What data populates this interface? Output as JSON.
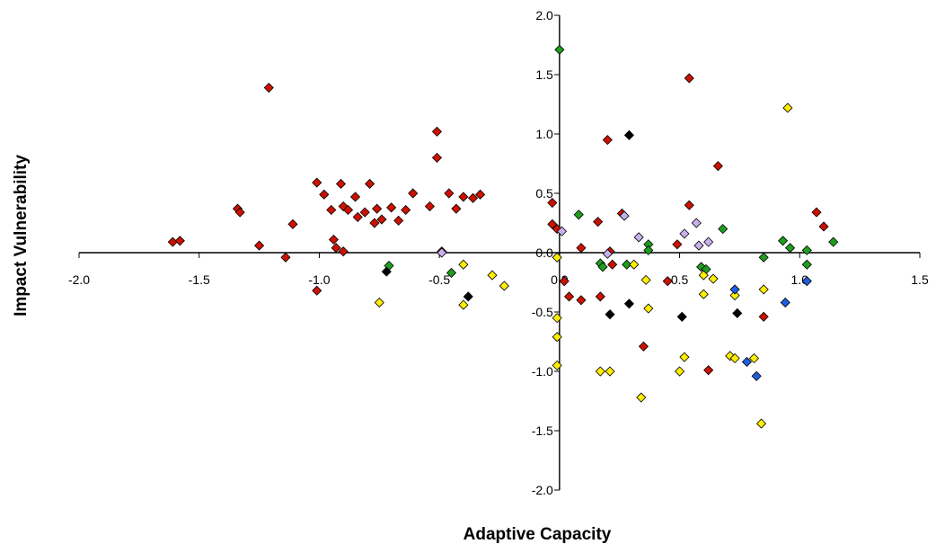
{
  "chart_data": {
    "type": "scatter",
    "title": "",
    "xlabel": "Adaptive Capacity",
    "ylabel": "Impact Vulnerability",
    "xlim": [
      -2.0,
      1.5
    ],
    "ylim": [
      -2.0,
      2.0
    ],
    "x_ticks": [
      "-2.0",
      "-1.5",
      "-1.0",
      "-0.5",
      "0.0",
      "0.5",
      "1.0",
      "1.5"
    ],
    "y_ticks": [
      "2.0",
      "1.5",
      "1.0",
      "0.5",
      "0.0",
      "-0.5",
      "-1.0",
      "-1.5",
      "-2.0"
    ],
    "grid": false,
    "legend": "none",
    "colors": {
      "red": "#cc1100",
      "green": "#1e9e1e",
      "yellow": "#ffee00",
      "black": "#000000",
      "blue": "#1f5fe0",
      "lavender": "#c8b0ee"
    },
    "series": [
      {
        "color": "red",
        "points": [
          [
            -1.61,
            0.09
          ],
          [
            -1.58,
            0.1
          ],
          [
            -1.34,
            0.37
          ],
          [
            -1.33,
            0.34
          ],
          [
            -1.25,
            0.06
          ],
          [
            -1.21,
            1.39
          ],
          [
            -1.14,
            -0.04
          ],
          [
            -1.11,
            0.24
          ],
          [
            -1.01,
            0.59
          ],
          [
            -1.01,
            -0.32
          ],
          [
            -0.98,
            0.49
          ],
          [
            -0.95,
            0.36
          ],
          [
            -0.94,
            0.11
          ],
          [
            -0.93,
            0.04
          ],
          [
            -0.91,
            0.58
          ],
          [
            -0.9,
            0.39
          ],
          [
            -0.9,
            0.01
          ],
          [
            -0.88,
            0.36
          ],
          [
            -0.85,
            0.47
          ],
          [
            -0.84,
            0.3
          ],
          [
            -0.81,
            0.34
          ],
          [
            -0.79,
            0.58
          ],
          [
            -0.77,
            0.25
          ],
          [
            -0.76,
            0.37
          ],
          [
            -0.74,
            0.28
          ],
          [
            -0.7,
            0.38
          ],
          [
            -0.67,
            0.27
          ],
          [
            -0.64,
            0.36
          ],
          [
            -0.61,
            0.5
          ],
          [
            -0.54,
            0.39
          ],
          [
            -0.51,
            1.02
          ],
          [
            -0.51,
            0.8
          ],
          [
            -0.49,
            0.01
          ],
          [
            -0.46,
            0.5
          ],
          [
            -0.43,
            0.37
          ],
          [
            -0.4,
            0.47
          ],
          [
            -0.36,
            0.46
          ],
          [
            -0.33,
            0.49
          ],
          [
            -0.03,
            0.42
          ],
          [
            -0.03,
            0.24
          ],
          [
            -0.01,
            0.2
          ],
          [
            0.02,
            -0.24
          ],
          [
            0.04,
            -0.37
          ],
          [
            0.09,
            -0.4
          ],
          [
            0.09,
            0.04
          ],
          [
            0.16,
            0.26
          ],
          [
            0.17,
            -0.37
          ],
          [
            0.2,
            0.95
          ],
          [
            0.21,
            0.01
          ],
          [
            0.22,
            -0.1
          ],
          [
            0.26,
            0.33
          ],
          [
            0.35,
            -0.79
          ],
          [
            0.45,
            -0.24
          ],
          [
            0.49,
            0.07
          ],
          [
            0.54,
            1.47
          ],
          [
            0.54,
            0.4
          ],
          [
            0.62,
            -0.99
          ],
          [
            0.66,
            0.73
          ],
          [
            0.85,
            -0.54
          ],
          [
            1.07,
            0.34
          ],
          [
            1.1,
            0.22
          ]
        ]
      },
      {
        "color": "green",
        "points": [
          [
            -0.71,
            -0.11
          ],
          [
            -0.45,
            -0.17
          ],
          [
            0.0,
            1.71
          ],
          [
            0.08,
            0.32
          ],
          [
            0.17,
            -0.09
          ],
          [
            0.18,
            -0.12
          ],
          [
            0.28,
            -0.1
          ],
          [
            0.37,
            0.07
          ],
          [
            0.37,
            0.02
          ],
          [
            0.59,
            -0.12
          ],
          [
            0.61,
            -0.14
          ],
          [
            0.68,
            0.2
          ],
          [
            0.85,
            -0.04
          ],
          [
            0.93,
            0.1
          ],
          [
            0.96,
            0.04
          ],
          [
            1.03,
            0.02
          ],
          [
            1.03,
            -0.1
          ],
          [
            1.14,
            0.09
          ]
        ]
      },
      {
        "color": "yellow",
        "points": [
          [
            -0.75,
            -0.42
          ],
          [
            -0.4,
            -0.1
          ],
          [
            -0.4,
            -0.44
          ],
          [
            -0.28,
            -0.19
          ],
          [
            -0.23,
            -0.28
          ],
          [
            -0.01,
            -0.71
          ],
          [
            -0.01,
            -0.95
          ],
          [
            -0.01,
            -0.55
          ],
          [
            -0.01,
            -0.04
          ],
          [
            0.17,
            -1.0
          ],
          [
            0.21,
            -1.0
          ],
          [
            0.31,
            -0.1
          ],
          [
            0.34,
            -1.22
          ],
          [
            0.36,
            -0.23
          ],
          [
            0.37,
            -0.47
          ],
          [
            0.5,
            -1.0
          ],
          [
            0.52,
            -0.88
          ],
          [
            0.6,
            -0.35
          ],
          [
            0.6,
            -0.19
          ],
          [
            0.64,
            -0.22
          ],
          [
            0.71,
            -0.87
          ],
          [
            0.73,
            -0.89
          ],
          [
            0.73,
            -0.36
          ],
          [
            0.81,
            -0.89
          ],
          [
            0.84,
            -1.44
          ],
          [
            0.85,
            -0.31
          ],
          [
            0.95,
            1.22
          ]
        ]
      },
      {
        "color": "black",
        "points": [
          [
            -0.72,
            -0.16
          ],
          [
            -0.38,
            -0.37
          ],
          [
            0.29,
            0.99
          ],
          [
            0.29,
            -0.43
          ],
          [
            0.21,
            -0.52
          ],
          [
            0.51,
            -0.54
          ],
          [
            0.74,
            -0.51
          ]
        ]
      },
      {
        "color": "blue",
        "points": [
          [
            0.73,
            -0.31
          ],
          [
            0.78,
            -0.92
          ],
          [
            0.82,
            -1.04
          ],
          [
            0.94,
            -0.42
          ],
          [
            1.03,
            -0.24
          ]
        ]
      },
      {
        "color": "lavender",
        "points": [
          [
            -0.49,
            0.0
          ],
          [
            0.01,
            0.18
          ],
          [
            0.27,
            0.31
          ],
          [
            0.33,
            0.13
          ],
          [
            0.52,
            0.16
          ],
          [
            0.57,
            0.25
          ],
          [
            0.58,
            0.06
          ],
          [
            0.62,
            0.09
          ],
          [
            0.2,
            -0.01
          ]
        ]
      }
    ]
  }
}
